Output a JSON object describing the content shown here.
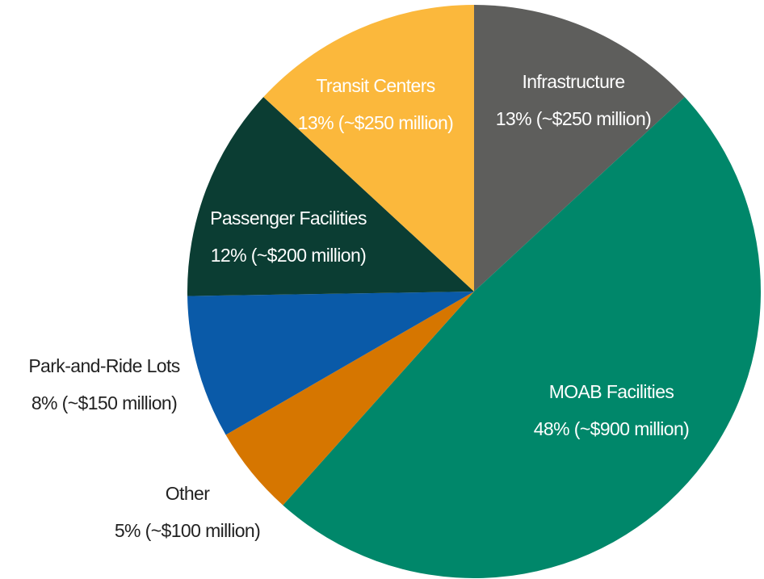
{
  "chart_data": {
    "type": "pie",
    "categories": [
      "Infrastructure",
      "MOAB Facilities",
      "Other",
      "Park-and-Ride Lots",
      "Passenger Facilities",
      "Transit Centers"
    ],
    "values": [
      13,
      48,
      5,
      8,
      12,
      13
    ],
    "value_labels": [
      "13% (~$250 million)",
      "48% (~$900 million)",
      "5% (~$100 million)",
      "8% (~$150 million)",
      "12% (~$200 million)",
      "13% (~$250 million)"
    ],
    "colors": [
      "#5e5e5c",
      "#00876a",
      "#d67600",
      "#0a5aa8",
      "#0b3d33",
      "#fbb83c"
    ]
  }
}
